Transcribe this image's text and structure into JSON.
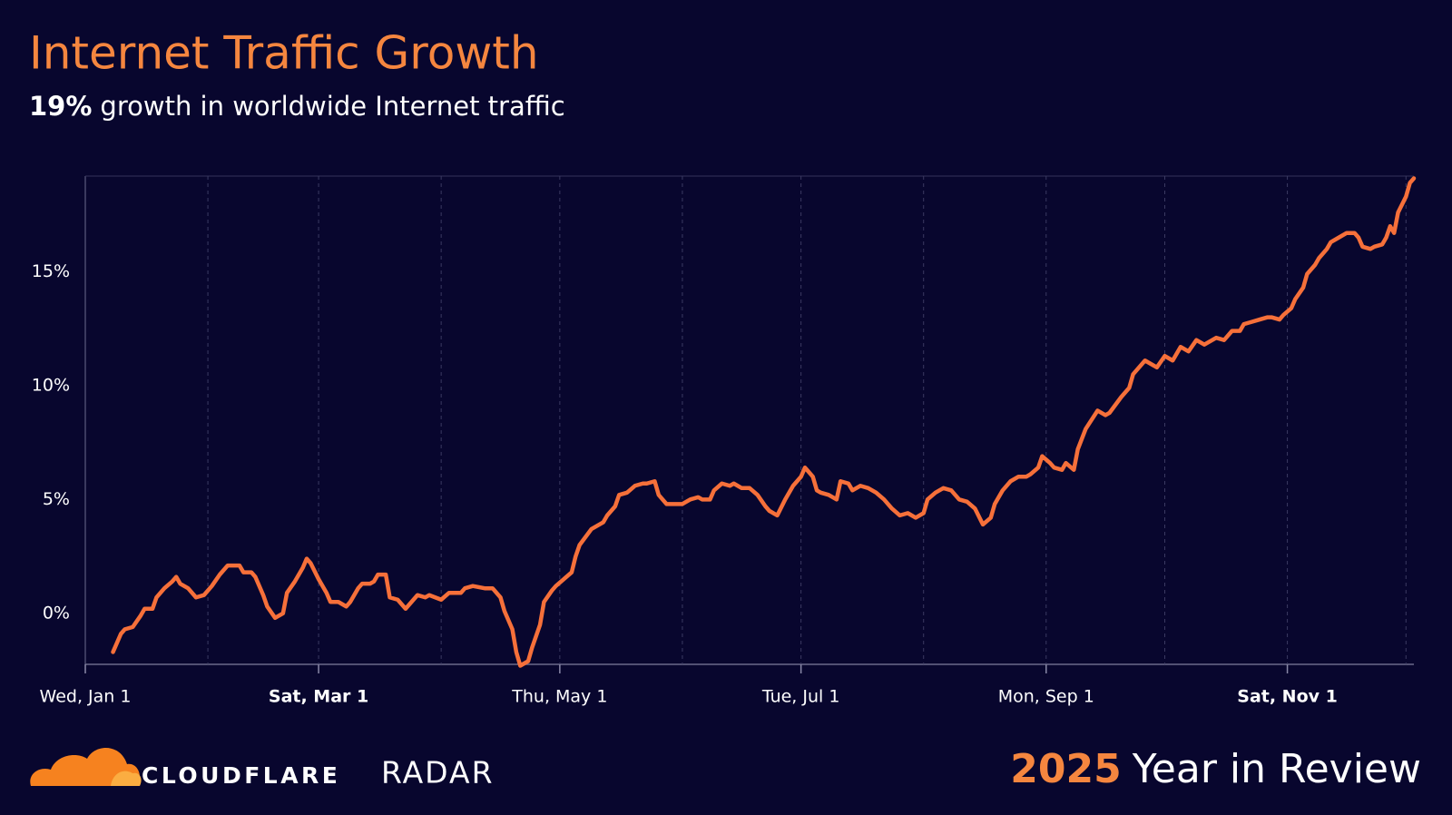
{
  "chart_data": {
    "type": "line",
    "title": "Internet Traffic Growth",
    "subtitle_highlight": "19%",
    "subtitle": "growth in worldwide Internet traffic",
    "color": "#f6703a",
    "x": [
      7,
      9,
      10,
      12,
      14,
      15,
      17,
      18,
      20,
      22,
      23,
      24,
      26,
      28,
      30,
      32,
      34,
      36,
      39,
      40,
      42,
      43,
      45,
      46,
      48,
      50,
      51,
      53,
      55,
      56,
      57,
      59,
      61,
      62,
      64,
      66,
      67,
      69,
      70,
      72,
      73,
      74,
      76,
      77,
      79,
      81,
      83,
      84,
      86,
      87,
      90,
      92,
      95,
      96,
      98,
      101,
      103,
      105,
      106,
      108,
      109,
      110,
      112,
      113,
      115,
      116,
      118,
      119,
      121,
      123,
      124,
      125,
      128,
      130,
      131,
      132,
      134,
      135,
      137,
      139,
      141,
      142,
      144,
      145,
      147,
      149,
      151,
      153,
      155,
      156,
      158,
      159,
      161,
      163,
      164,
      166,
      168,
      170,
      172,
      173,
      175,
      177,
      179,
      181,
      182,
      184,
      185,
      186,
      188,
      190,
      191,
      193,
      194,
      196,
      198,
      200,
      202,
      204,
      206,
      208,
      210,
      212,
      213,
      215,
      217,
      219,
      221,
      223,
      225,
      227,
      229,
      230,
      232,
      234,
      236,
      238,
      239,
      241,
      242,
      244,
      245,
      247,
      248,
      250,
      251,
      253,
      256,
      258,
      259,
      262,
      264,
      265,
      268,
      271,
      273,
      275,
      277,
      279,
      281,
      283,
      285,
      286,
      288,
      290,
      292,
      293,
      295,
      297,
      299,
      300,
      302,
      303,
      305,
      306,
      308,
      309,
      311,
      312,
      314,
      315,
      317,
      319,
      321,
      322,
      323,
      325,
      326,
      328,
      329,
      330,
      331,
      332,
      334,
      335,
      336
    ],
    "values": [
      -1.7,
      -0.9,
      -0.7,
      -0.6,
      -0.1,
      0.2,
      0.2,
      0.7,
      1.1,
      1.4,
      1.6,
      1.3,
      1.1,
      0.7,
      0.8,
      1.2,
      1.7,
      2.1,
      2.1,
      1.8,
      1.8,
      1.6,
      0.8,
      0.3,
      -0.2,
      0.0,
      0.9,
      1.4,
      2.0,
      2.4,
      2.2,
      1.5,
      0.9,
      0.5,
      0.5,
      0.3,
      0.5,
      1.1,
      1.3,
      1.3,
      1.4,
      1.7,
      1.7,
      0.7,
      0.6,
      0.2,
      0.6,
      0.8,
      0.7,
      0.8,
      0.6,
      0.9,
      0.9,
      1.1,
      1.2,
      1.1,
      1.1,
      0.7,
      0.1,
      -0.7,
      -1.7,
      -2.3,
      -2.1,
      -1.5,
      -0.5,
      0.5,
      1.0,
      1.2,
      1.5,
      1.8,
      2.5,
      3.0,
      3.7,
      3.9,
      4.0,
      4.3,
      4.7,
      5.2,
      5.3,
      5.6,
      5.7,
      5.7,
      5.8,
      5.2,
      4.8,
      4.8,
      4.8,
      5.0,
      5.1,
      5.0,
      5.0,
      5.4,
      5.7,
      5.6,
      5.7,
      5.5,
      5.5,
      5.2,
      4.7,
      4.5,
      4.3,
      5.0,
      5.6,
      6.0,
      6.4,
      6.0,
      5.4,
      5.3,
      5.2,
      5.0,
      5.8,
      5.7,
      5.4,
      5.6,
      5.5,
      5.3,
      5.0,
      4.6,
      4.3,
      4.4,
      4.2,
      4.4,
      5.0,
      5.3,
      5.5,
      5.4,
      5.0,
      4.9,
      4.6,
      3.9,
      4.2,
      4.8,
      5.4,
      5.8,
      6.0,
      6.0,
      6.1,
      6.4,
      6.9,
      6.6,
      6.4,
      6.3,
      6.6,
      6.3,
      7.2,
      8.1,
      8.9,
      8.7,
      8.8,
      9.5,
      9.9,
      10.5,
      11.1,
      10.8,
      11.3,
      11.1,
      11.7,
      11.5,
      12.0,
      11.8,
      12.0,
      12.1,
      12.0,
      12.4,
      12.4,
      12.7,
      12.8,
      12.9,
      13.0,
      13.0,
      12.9,
      13.1,
      13.4,
      13.8,
      14.3,
      14.9,
      15.3,
      15.6,
      16.0,
      16.3,
      16.5,
      16.7,
      16.7,
      16.5,
      16.1,
      16.0,
      16.1,
      16.2,
      16.5,
      17.0,
      16.7,
      17.6,
      18.3,
      18.9,
      19.1
    ],
    "xlim": [
      0,
      336
    ],
    "xticks": [
      {
        "value": 0,
        "label": "Wed, Jan 1"
      },
      {
        "value": 59,
        "label": "Sat, Mar 1",
        "bold": true
      },
      {
        "value": 120,
        "label": "Thu, May 1"
      },
      {
        "value": 181,
        "label": "Tue, Jul 1"
      },
      {
        "value": 243,
        "label": "Mon, Sep 1"
      },
      {
        "value": 304,
        "label": "Sat, Nov 1",
        "bold": true
      }
    ],
    "x_minor_ticks": [
      31,
      90,
      151,
      212,
      273,
      334
    ],
    "ylim": [
      -2.24,
      19.2
    ],
    "yticks": [
      {
        "value": 0,
        "label": "0%"
      },
      {
        "value": 5,
        "label": "5%"
      },
      {
        "value": 10,
        "label": "10%"
      },
      {
        "value": 15,
        "label": "15%"
      }
    ],
    "grid": true
  },
  "footer": {
    "brand": "CLOUDFLARE",
    "product": "RADAR",
    "year": "2025",
    "caption": "Year in Review"
  }
}
